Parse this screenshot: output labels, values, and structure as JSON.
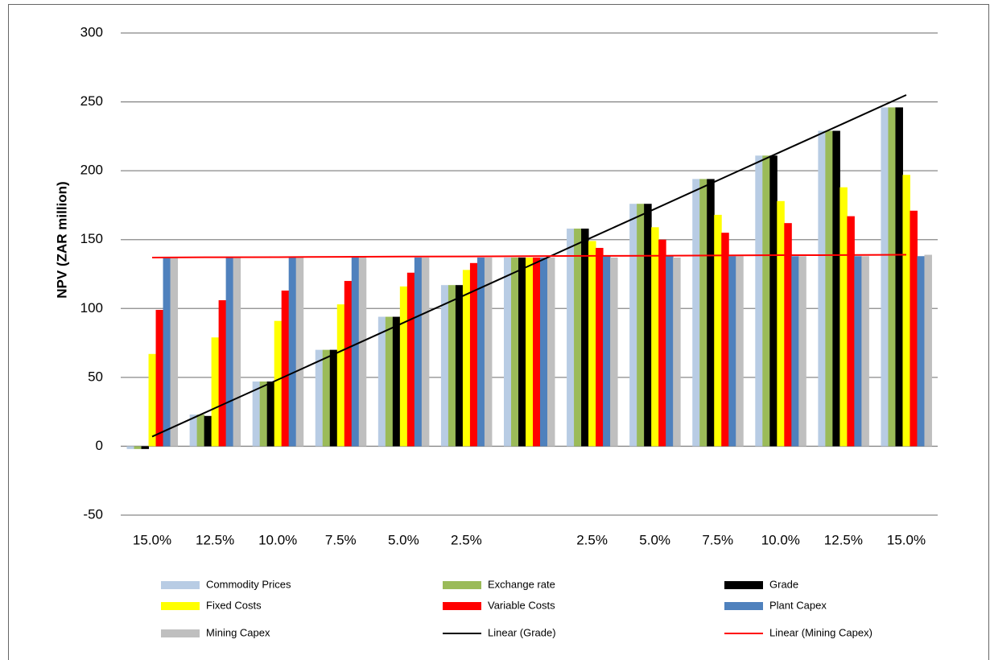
{
  "chart_data": {
    "type": "bar",
    "y_label": "NPV (ZAR million)",
    "categories": [
      "15.0%",
      "12.5%",
      "10.0%",
      "7.5%",
      "5.0%",
      "2.5%",
      null,
      "2.5%",
      "5.0%",
      "7.5%",
      "10.0%",
      "12.5%",
      "15.0%"
    ],
    "ylim": [
      -50,
      300
    ],
    "yticks": [
      -50,
      0,
      50,
      100,
      150,
      200,
      250,
      300
    ],
    "grid": true,
    "series": [
      {
        "name": "Commodity Prices",
        "color": "#b8cce4",
        "values": [
          -2,
          23,
          47,
          70,
          94,
          117,
          137,
          158,
          176,
          194,
          211,
          229,
          246
        ]
      },
      {
        "name": "Exchange rate",
        "color": "#9bbb59",
        "values": [
          -2,
          23,
          47,
          70,
          94,
          117,
          137,
          158,
          176,
          194,
          211,
          229,
          246
        ]
      },
      {
        "name": "Grade",
        "color": "#000000",
        "values": [
          -2,
          22,
          47,
          70,
          94,
          117,
          137,
          158,
          176,
          194,
          211,
          229,
          246
        ]
      },
      {
        "name": "Fixed Costs",
        "color": "#ffff00",
        "values": [
          67,
          79,
          91,
          103,
          116,
          128,
          137,
          149,
          159,
          168,
          178,
          188,
          197
        ]
      },
      {
        "name": "Variable Costs",
        "color": "#ff0000",
        "values": [
          99,
          106,
          113,
          120,
          126,
          133,
          137,
          144,
          150,
          155,
          162,
          167,
          171
        ]
      },
      {
        "name": "Plant Capex",
        "color": "#4f81bd",
        "values": [
          137,
          137,
          137,
          137,
          137,
          137,
          137,
          138,
          138,
          138,
          138,
          138,
          138
        ]
      },
      {
        "name": "Mining Capex",
        "color": "#bfbfbf",
        "values": [
          137,
          137,
          137,
          137,
          137,
          137,
          137,
          137,
          137,
          138,
          138,
          138,
          139
        ]
      },
      {
        "name": "Linear (Grade)",
        "color": "#000000",
        "style": "line",
        "values": [
          7,
          27.7,
          48.3,
          69,
          89.7,
          110.3,
          131,
          151.7,
          172.3,
          193,
          213.7,
          234.3,
          255
        ]
      },
      {
        "name": "Linear (Mining Capex)",
        "color": "#ff0000",
        "style": "line",
        "values": [
          137,
          137.2,
          137.3,
          137.5,
          137.7,
          137.8,
          138,
          138.2,
          138.3,
          138.5,
          138.7,
          138.8,
          139
        ]
      }
    ]
  }
}
